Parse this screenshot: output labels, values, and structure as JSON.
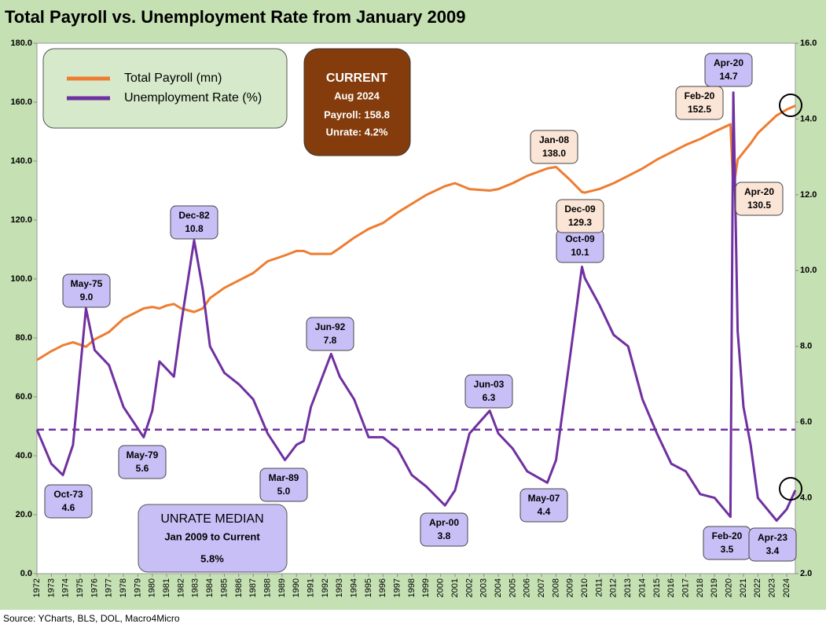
{
  "chart_data": {
    "type": "line",
    "title": "Total Payroll vs. Unemployment Rate from January 2009",
    "source": "Source: YCharts, BLS, DOL, Macro4Micro",
    "x": [
      1972.0,
      1973.0,
      1973.8,
      1974.5,
      1975.4,
      1976.0,
      1977.0,
      1978.0,
      1979.4,
      1980.0,
      1980.5,
      1981.0,
      1981.5,
      1982.0,
      1982.9,
      1983.5,
      1984.0,
      1985.0,
      1986.0,
      1987.0,
      1988.0,
      1989.2,
      1990.0,
      1990.5,
      1991.0,
      1992.4,
      1993.0,
      1994.0,
      1995.0,
      1996.0,
      1997.0,
      1998.0,
      1999.0,
      2000.3,
      2001.0,
      2002.0,
      2003.4,
      2004.0,
      2005.0,
      2006.0,
      2007.4,
      2008.0,
      2009.0,
      2009.8,
      2010.0,
      2011.0,
      2012.0,
      2013.0,
      2014.0,
      2015.0,
      2016.0,
      2017.0,
      2018.0,
      2019.0,
      2020.1,
      2020.3,
      2020.6,
      2021.0,
      2021.5,
      2022.0,
      2023.3,
      2024.0,
      2024.6
    ],
    "series": [
      {
        "name": "Total Payroll (mn)",
        "color": "#ed7d31",
        "values": [
          72.5,
          75.5,
          77.5,
          78.5,
          77,
          79.5,
          82,
          86.5,
          90,
          90.5,
          90,
          91,
          91.5,
          90,
          88.8,
          90,
          93.5,
          97,
          99.5,
          102,
          106,
          108,
          109.5,
          109.5,
          108.5,
          108.5,
          110.5,
          114,
          117,
          119,
          122.5,
          125.5,
          128.5,
          131.5,
          132.5,
          130.5,
          130,
          130.5,
          132.5,
          135,
          137.5,
          138,
          133.5,
          129.5,
          129.3,
          130.5,
          132.5,
          135,
          137.5,
          140.5,
          143,
          145.5,
          147.5,
          150,
          152.5,
          130.5,
          140.5,
          143,
          146,
          149.5,
          155.5,
          157.5,
          158.8
        ]
      },
      {
        "name": "Unemployment Rate (%)",
        "color": "#7030a0",
        "axis": "y2",
        "values": [
          5.8,
          4.9,
          4.6,
          5.4,
          9.0,
          7.9,
          7.5,
          6.4,
          5.6,
          6.3,
          7.6,
          7.4,
          7.2,
          8.6,
          10.8,
          9.5,
          8.0,
          7.3,
          7.0,
          6.6,
          5.7,
          5.0,
          5.4,
          5.5,
          6.4,
          7.8,
          7.2,
          6.6,
          5.6,
          5.6,
          5.3,
          4.6,
          4.3,
          3.8,
          4.2,
          5.7,
          6.3,
          5.7,
          5.3,
          4.7,
          4.4,
          5.0,
          7.8,
          10.1,
          9.8,
          9.1,
          8.3,
          8.0,
          6.6,
          5.7,
          4.9,
          4.7,
          4.1,
          4.0,
          3.5,
          14.7,
          8.4,
          6.4,
          5.4,
          4.0,
          3.4,
          3.7,
          4.2
        ]
      }
    ],
    "median": 5.8,
    "xlim": [
      1972,
      2024.6
    ],
    "xticks": [
      1972,
      1973,
      1974,
      1975,
      1976,
      1977,
      1978,
      1979,
      1980,
      1981,
      1982,
      1983,
      1984,
      1985,
      1986,
      1987,
      1988,
      1989,
      1990,
      1991,
      1992,
      1993,
      1994,
      1995,
      1996,
      1997,
      1998,
      1999,
      2000,
      2001,
      2002,
      2003,
      2004,
      2005,
      2006,
      2007,
      2008,
      2009,
      2010,
      2011,
      2012,
      2013,
      2014,
      2015,
      2016,
      2017,
      2018,
      2019,
      2020,
      2021,
      2022,
      2023,
      2024
    ],
    "ylim": [
      0,
      180
    ],
    "yticks": [
      {
        "value": 0,
        "label": "0.0"
      },
      {
        "value": 20,
        "label": "20.0"
      },
      {
        "value": 40,
        "label": "40.0"
      },
      {
        "value": 60,
        "label": "60.0"
      },
      {
        "value": 80,
        "label": "80.0"
      },
      {
        "value": 100,
        "label": "100.0"
      },
      {
        "value": 120,
        "label": "120.0"
      },
      {
        "value": 140,
        "label": "140.0"
      },
      {
        "value": 160,
        "label": "160.0"
      },
      {
        "value": 180,
        "label": "180.0"
      }
    ],
    "y2lim": [
      2,
      16
    ],
    "y2ticks": [
      {
        "value": 2,
        "label": "2.0"
      },
      {
        "value": 4,
        "label": "4.0"
      },
      {
        "value": 6,
        "label": "6.0"
      },
      {
        "value": 8,
        "label": "8.0"
      },
      {
        "value": 10,
        "label": "10.0"
      },
      {
        "value": 12,
        "label": "12.0"
      },
      {
        "value": 14,
        "label": "14.0"
      },
      {
        "value": 16,
        "label": "16.0"
      }
    ],
    "current": {
      "title": "CURRENT",
      "date": "Aug 2024",
      "payroll": "Payroll: 158.8",
      "unrate": "Unrate: 4.2%"
    },
    "median_box": {
      "title": "UNRATE MEDIAN",
      "period": "Jan 2009 to Current",
      "value": "5.8%"
    },
    "annotations": [
      {
        "label": "Oct-73",
        "text": "4.6"
      },
      {
        "label": "May-75",
        "text": "9.0"
      },
      {
        "label": "Dec-82",
        "text": "10.8"
      },
      {
        "label": "May-79",
        "text": "5.6"
      },
      {
        "label": "Mar-89",
        "text": "5.0"
      },
      {
        "label": "Jun-92",
        "text": "7.8"
      },
      {
        "label": "Jun-03",
        "text": "6.3"
      },
      {
        "label": "Apr-00",
        "text": "3.8"
      },
      {
        "label": "May-07",
        "text": "4.4"
      },
      {
        "label": "Oct-09",
        "text": "10.1"
      },
      {
        "label": "Dec-09",
        "text": "129.3"
      },
      {
        "label": "Jan-08",
        "text": "138.0"
      },
      {
        "label": "Feb-20",
        "text": "152.5"
      },
      {
        "label": "Apr-20",
        "text": "14.7"
      },
      {
        "label": "Apr-20",
        "text": "130.5"
      },
      {
        "label": "Feb-20",
        "text": "3.5"
      },
      {
        "label": "Apr-23",
        "text": "3.4"
      }
    ]
  }
}
